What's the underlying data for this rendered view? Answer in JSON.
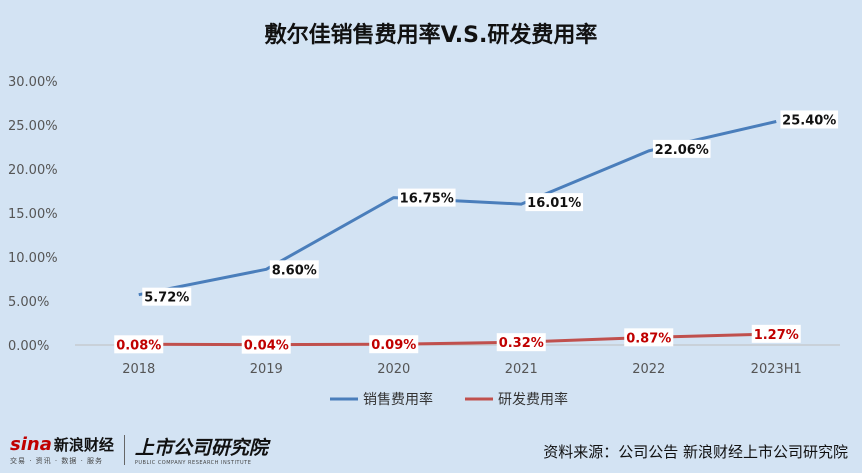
{
  "chart_data": {
    "type": "line",
    "title": "敷尔佳销售费用率V.S.研发费用率",
    "categories": [
      "2018",
      "2019",
      "2020",
      "2021",
      "2022",
      "2023H1"
    ],
    "ylim": [
      0,
      30
    ],
    "yticks": [
      "0.00%",
      "5.00%",
      "10.00%",
      "15.00%",
      "20.00%",
      "25.00%",
      "30.00%"
    ],
    "grid": false,
    "legend_position": "bottom",
    "series": [
      {
        "name": "销售费用率",
        "color": "#4a7ebb",
        "values": [
          5.72,
          8.6,
          16.75,
          16.01,
          22.06,
          25.4
        ],
        "labels": [
          "5.72%",
          "8.60%",
          "16.75%",
          "16.01%",
          "22.06%",
          "25.40%"
        ]
      },
      {
        "name": "研发费用率",
        "color": "#c0504d",
        "values": [
          0.08,
          0.04,
          0.09,
          0.32,
          0.87,
          1.27
        ],
        "labels": [
          "0.08%",
          "0.04%",
          "0.09%",
          "0.32%",
          "0.87%",
          "1.27%"
        ]
      }
    ]
  },
  "footer": {
    "logo_brand": "sina",
    "logo_brand_cn": "新浪财经",
    "logo_sub": "交易 · 资讯 · 数据 · 服务",
    "logo_institute": "上市公司研究院",
    "logo_institute_en": "PUBLIC COMPANY RESEARCH INSTITUTE",
    "source": "资料来源：公司公告 新浪财经上市公司研究院"
  }
}
